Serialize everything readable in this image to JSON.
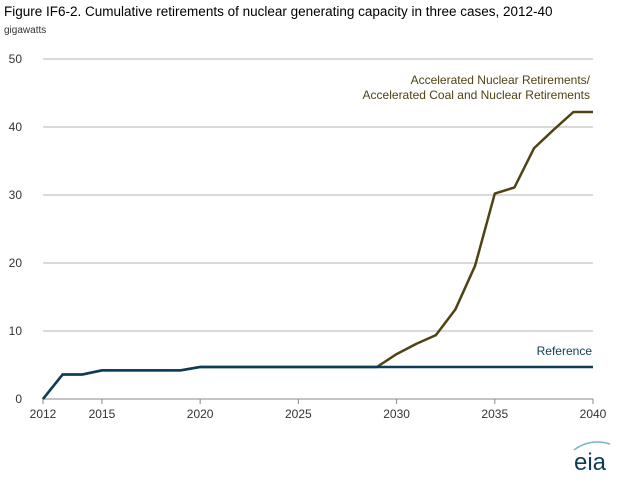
{
  "chart_data": {
    "type": "line",
    "title": "Figure IF6-2. Cumulative retirements of nuclear generating capacity in three cases, 2012-40",
    "ylabel": "gigawatts",
    "xlabel": "",
    "xlim": [
      2012,
      2040
    ],
    "ylim": [
      0,
      50
    ],
    "xticks": [
      2012,
      2015,
      2020,
      2025,
      2030,
      2035,
      2040
    ],
    "yticks": [
      0,
      10,
      20,
      30,
      40,
      50
    ],
    "grid": "horizontal",
    "x": [
      2012,
      2013,
      2014,
      2015,
      2016,
      2017,
      2018,
      2019,
      2020,
      2021,
      2022,
      2023,
      2024,
      2025,
      2026,
      2027,
      2028,
      2029,
      2030,
      2031,
      2032,
      2033,
      2034,
      2035,
      2036,
      2037,
      2038,
      2039,
      2040
    ],
    "series": [
      {
        "name": "Reference",
        "label_lines": [
          "Reference"
        ],
        "color": "#0d3d56",
        "values": [
          0,
          3.6,
          3.6,
          4.2,
          4.2,
          4.2,
          4.2,
          4.2,
          4.7,
          4.7,
          4.7,
          4.7,
          4.7,
          4.7,
          4.7,
          4.7,
          4.7,
          4.7,
          4.7,
          4.7,
          4.7,
          4.7,
          4.7,
          4.7,
          4.7,
          4.7,
          4.7,
          4.7,
          4.7
        ]
      },
      {
        "name": "Accelerated Nuclear Retirements/ Accelerated Coal and Nuclear Retirements",
        "label_lines": [
          "Accelerated Nuclear Retirements/",
          "Accelerated Coal and Nuclear Retirements"
        ],
        "color": "#4f4215",
        "values": [
          0,
          3.6,
          3.6,
          4.2,
          4.2,
          4.2,
          4.2,
          4.2,
          4.7,
          4.7,
          4.7,
          4.7,
          4.7,
          4.7,
          4.7,
          4.7,
          4.7,
          4.7,
          6.6,
          8.1,
          9.4,
          13.2,
          19.6,
          30.2,
          31.1,
          36.9,
          39.6,
          42.2,
          42.2
        ]
      }
    ]
  },
  "logo": {
    "text": "eia",
    "color": "#0d3d56"
  }
}
